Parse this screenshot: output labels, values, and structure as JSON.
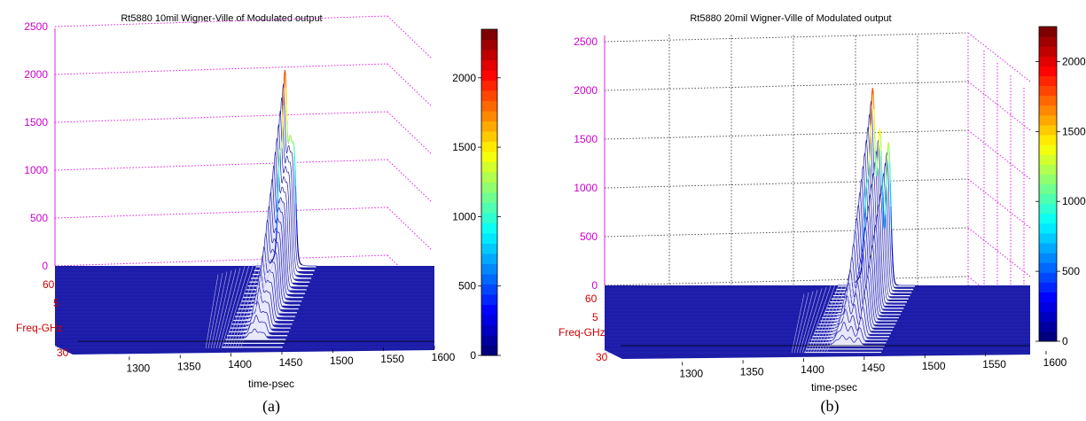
{
  "colors": {
    "mesh": "#1c1ca8",
    "grid": "#e020e0",
    "zaxis_ticks": "#cc00cc",
    "freq_labels": "#cc0000",
    "text": "#000000",
    "colormap": "jet"
  },
  "panels": [
    {
      "label": "(a)",
      "chart_data": {
        "type": "3d-waterfall",
        "title": "Rt5880 10mil Wigner-Ville of Modulated output",
        "xlabel": "time-psec",
        "ylabel": "Freq-GHz",
        "xlim": [
          1260,
          1600
        ],
        "xticks": [
          1300,
          1350,
          1400,
          1450,
          1500,
          1550,
          1600
        ],
        "zlim": [
          0,
          2500
        ],
        "zticks": [
          0,
          500,
          1000,
          1500,
          2000,
          2500
        ],
        "yticks_visible": [
          "60",
          "5",
          "30"
        ],
        "peaks": [
          {
            "time": 1448,
            "amplitude": 870
          },
          {
            "time": 1453,
            "amplitude": 1620
          },
          {
            "time": 1458,
            "amplitude": 950
          },
          {
            "time": 1462,
            "amplitude": 1010
          }
        ],
        "colorbar": {
          "min": 0,
          "max": 2350,
          "ticks": [
            0,
            500,
            1000,
            1500,
            2000
          ]
        }
      }
    },
    {
      "label": "(b)",
      "chart_data": {
        "type": "3d-waterfall",
        "title": "Rt5880 20mil Wigner-Ville of Modulated output",
        "xlabel": "time-psec",
        "ylabel": "Freq-GHz",
        "xlim": [
          1260,
          1600
        ],
        "xticks": [
          1300,
          1350,
          1400,
          1450,
          1500,
          1550,
          1600
        ],
        "zlim": [
          0,
          2500
        ],
        "zticks": [
          0,
          500,
          1000,
          1500,
          2000,
          2500
        ],
        "yticks_visible": [
          "60",
          "5",
          "30"
        ],
        "peaks": [
          {
            "time": 1452,
            "amplitude": 720
          },
          {
            "time": 1457,
            "amplitude": 1620
          },
          {
            "time": 1463,
            "amplitude": 1350
          },
          {
            "time": 1470,
            "amplitude": 1420
          }
        ],
        "colorbar": {
          "min": 0,
          "max": 2250,
          "ticks": [
            0,
            500,
            1000,
            1500,
            2000
          ]
        }
      }
    }
  ]
}
